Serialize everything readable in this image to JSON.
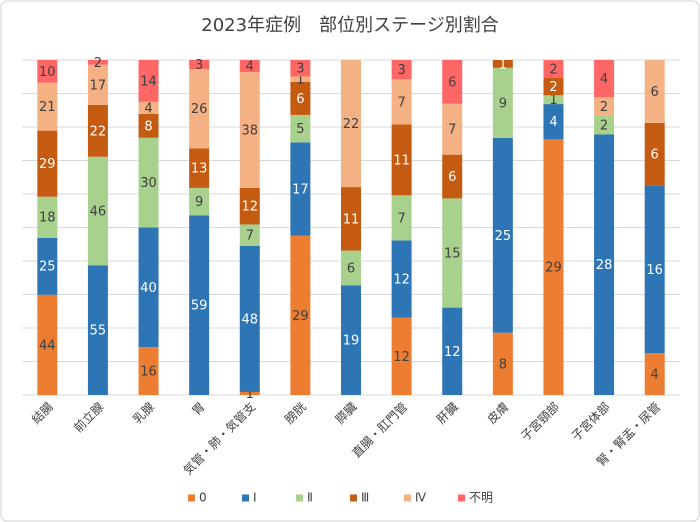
{
  "chart_data": {
    "type": "bar",
    "stacked": true,
    "normalized": true,
    "title": "2023年症例　部位別ステージ別割合",
    "categories": [
      "結腸",
      "前立腺",
      "乳腺",
      "胃",
      "気管・肺・気管支",
      "膀胱",
      "膵臓",
      "直腸・肛門管",
      "肝臓",
      "皮膚",
      "子宮頸部",
      "子宮体部",
      "腎・腎盂・尿管"
    ],
    "series": [
      {
        "name": "0",
        "color": "#ED7D31",
        "values": [
          44,
          null,
          16,
          null,
          1,
          29,
          null,
          12,
          null,
          8,
          29,
          null,
          4
        ]
      },
      {
        "name": "Ⅰ",
        "color": "#2E75B6",
        "values": [
          25,
          55,
          40,
          59,
          48,
          17,
          19,
          12,
          12,
          25,
          4,
          28,
          16
        ]
      },
      {
        "name": "Ⅱ",
        "color": "#A9D18E",
        "values": [
          18,
          46,
          30,
          9,
          7,
          5,
          6,
          7,
          15,
          9,
          1,
          2,
          null
        ]
      },
      {
        "name": "Ⅲ",
        "color": "#C55A11",
        "values": [
          29,
          22,
          8,
          13,
          12,
          6,
          11,
          11,
          6,
          1,
          2,
          null,
          6
        ]
      },
      {
        "name": "Ⅳ",
        "color": "#F4B183",
        "values": [
          21,
          17,
          4,
          26,
          38,
          1,
          22,
          7,
          7,
          null,
          null,
          2,
          6
        ]
      },
      {
        "name": "不明",
        "color": "#FF6666",
        "values": [
          10,
          2,
          14,
          3,
          4,
          3,
          null,
          3,
          6,
          null,
          2,
          4,
          null
        ]
      }
    ],
    "grid": true,
    "legend": "bottom"
  }
}
